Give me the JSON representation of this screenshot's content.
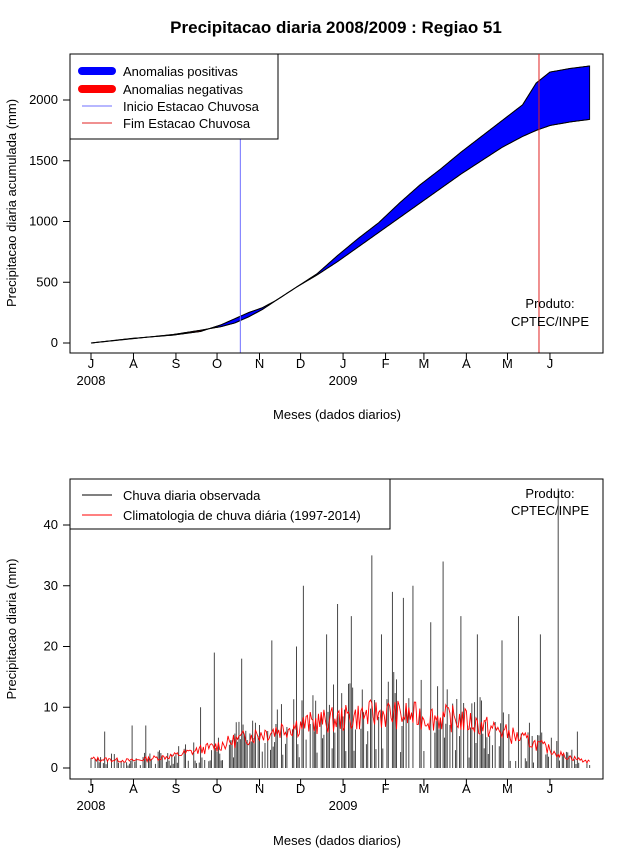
{
  "figure_title": "Precipitacao diaria 2008/2009 : Regiao 51",
  "chart_data": [
    {
      "type": "area",
      "ylabel": "Precipitacao diaria acumulada (mm)",
      "xlabel": "Meses (dados diarios)",
      "ylim": [
        0,
        2300
      ],
      "yticks": [
        0,
        500,
        1000,
        1500,
        2000
      ],
      "months": [
        "J",
        "A",
        "S",
        "O",
        "N",
        "D",
        "J",
        "F",
        "M",
        "A",
        "M",
        "J"
      ],
      "year_labels": [
        {
          "label": "2008",
          "month_index": 0
        },
        {
          "label": "2009",
          "month_index": 6
        }
      ],
      "legend": [
        "Anomalias positivas",
        "Anomalias negativas",
        "Inicio Estacao Chuvosa",
        "Fim Estacao Chuvosa"
      ],
      "colors": {
        "positive": "#0000ff",
        "negative": "#ff0000",
        "start": "#6f6fff",
        "end": "#e22222"
      },
      "start_season_day": 109,
      "end_season_day": 327,
      "observed_cumulative": [
        {
          "day": 0,
          "value": 0
        },
        {
          "day": 30,
          "value": 38
        },
        {
          "day": 60,
          "value": 65
        },
        {
          "day": 80,
          "value": 95
        },
        {
          "day": 95,
          "value": 150
        },
        {
          "day": 105,
          "value": 200
        },
        {
          "day": 115,
          "value": 250
        },
        {
          "day": 125,
          "value": 290
        },
        {
          "day": 135,
          "value": 350
        },
        {
          "day": 150,
          "value": 460
        },
        {
          "day": 165,
          "value": 570
        },
        {
          "day": 180,
          "value": 720
        },
        {
          "day": 195,
          "value": 860
        },
        {
          "day": 210,
          "value": 990
        },
        {
          "day": 225,
          "value": 1150
        },
        {
          "day": 240,
          "value": 1300
        },
        {
          "day": 255,
          "value": 1430
        },
        {
          "day": 270,
          "value": 1570
        },
        {
          "day": 285,
          "value": 1700
        },
        {
          "day": 300,
          "value": 1830
        },
        {
          "day": 315,
          "value": 1960
        },
        {
          "day": 325,
          "value": 2140
        },
        {
          "day": 335,
          "value": 2230
        },
        {
          "day": 350,
          "value": 2260
        },
        {
          "day": 364,
          "value": 2280
        }
      ],
      "climatology_cumulative": [
        {
          "day": 0,
          "value": 0
        },
        {
          "day": 30,
          "value": 35
        },
        {
          "day": 60,
          "value": 70
        },
        {
          "day": 80,
          "value": 105
        },
        {
          "day": 95,
          "value": 135
        },
        {
          "day": 105,
          "value": 165
        },
        {
          "day": 115,
          "value": 215
        },
        {
          "day": 125,
          "value": 275
        },
        {
          "day": 135,
          "value": 350
        },
        {
          "day": 150,
          "value": 460
        },
        {
          "day": 165,
          "value": 560
        },
        {
          "day": 180,
          "value": 670
        },
        {
          "day": 195,
          "value": 790
        },
        {
          "day": 210,
          "value": 910
        },
        {
          "day": 225,
          "value": 1030
        },
        {
          "day": 240,
          "value": 1150
        },
        {
          "day": 255,
          "value": 1270
        },
        {
          "day": 270,
          "value": 1390
        },
        {
          "day": 285,
          "value": 1500
        },
        {
          "day": 300,
          "value": 1610
        },
        {
          "day": 315,
          "value": 1700
        },
        {
          "day": 325,
          "value": 1750
        },
        {
          "day": 335,
          "value": 1790
        },
        {
          "day": 350,
          "value": 1820
        },
        {
          "day": 364,
          "value": 1840
        }
      ],
      "annotation": [
        "Produto:",
        "CPTEC/INPE"
      ]
    },
    {
      "type": "bar",
      "ylabel": "Precipitacao diaria (mm)",
      "xlabel": "Meses (dados diarios)",
      "ylim": [
        0,
        46
      ],
      "yticks": [
        0,
        10,
        20,
        30,
        40
      ],
      "months": [
        "J",
        "A",
        "S",
        "O",
        "N",
        "D",
        "J",
        "F",
        "M",
        "A",
        "M",
        "J"
      ],
      "year_labels": [
        {
          "label": "2008",
          "month_index": 0
        },
        {
          "label": "2009",
          "month_index": 6
        }
      ],
      "legend": [
        "Chuva diaria observada",
        "Climatologia de chuva diária (1997-2014)"
      ],
      "colors": {
        "observed": "#000000",
        "climatology": "#ff0000"
      },
      "observed_peaks": [
        {
          "day": 10,
          "value": 6
        },
        {
          "day": 30,
          "value": 7
        },
        {
          "day": 40,
          "value": 7
        },
        {
          "day": 80,
          "value": 10
        },
        {
          "day": 90,
          "value": 19
        },
        {
          "day": 110,
          "value": 18
        },
        {
          "day": 132,
          "value": 21
        },
        {
          "day": 150,
          "value": 20
        },
        {
          "day": 155,
          "value": 30
        },
        {
          "day": 172,
          "value": 22
        },
        {
          "day": 180,
          "value": 27
        },
        {
          "day": 190,
          "value": 25
        },
        {
          "day": 205,
          "value": 35
        },
        {
          "day": 212,
          "value": 22
        },
        {
          "day": 220,
          "value": 29
        },
        {
          "day": 228,
          "value": 28
        },
        {
          "day": 235,
          "value": 30
        },
        {
          "day": 248,
          "value": 24
        },
        {
          "day": 257,
          "value": 34
        },
        {
          "day": 270,
          "value": 25
        },
        {
          "day": 282,
          "value": 22
        },
        {
          "day": 300,
          "value": 21
        },
        {
          "day": 312,
          "value": 25
        },
        {
          "day": 328,
          "value": 22
        },
        {
          "day": 341,
          "value": 46
        },
        {
          "day": 355,
          "value": 6
        }
      ],
      "climatology_daily": [
        {
          "day": 0,
          "value": 1.5
        },
        {
          "day": 30,
          "value": 1.2
        },
        {
          "day": 60,
          "value": 2.0
        },
        {
          "day": 90,
          "value": 3.5
        },
        {
          "day": 120,
          "value": 5.5
        },
        {
          "day": 150,
          "value": 7.0
        },
        {
          "day": 180,
          "value": 8.0
        },
        {
          "day": 210,
          "value": 9.0
        },
        {
          "day": 240,
          "value": 8.5
        },
        {
          "day": 270,
          "value": 8.0
        },
        {
          "day": 300,
          "value": 6.0
        },
        {
          "day": 330,
          "value": 3.5
        },
        {
          "day": 345,
          "value": 2.0
        },
        {
          "day": 364,
          "value": 1.0
        }
      ],
      "annotation": [
        "Produto:",
        "CPTEC/INPE"
      ]
    }
  ]
}
